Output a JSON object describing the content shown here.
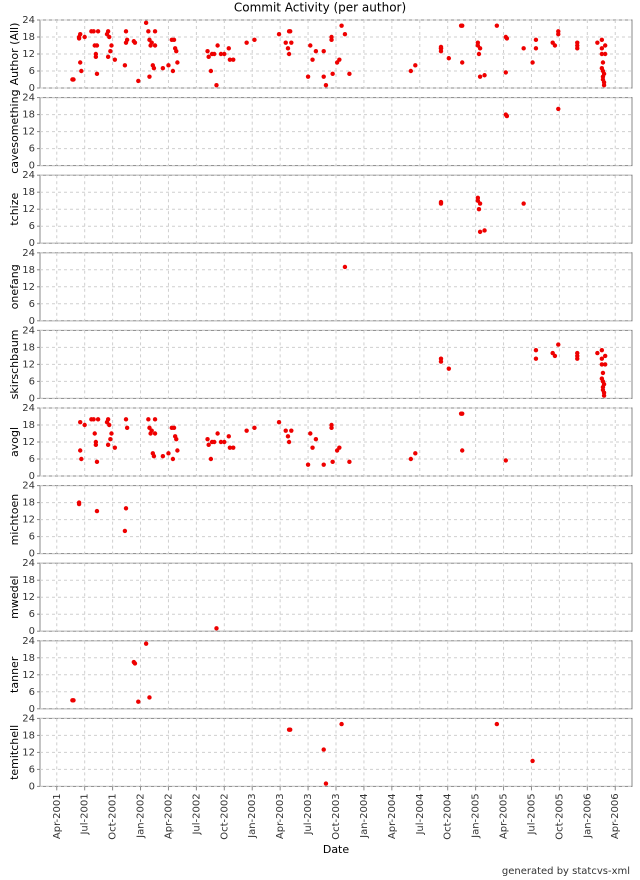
{
  "footer": "generated by statcvs-xml",
  "chart_data": [
    {
      "type": "scatter",
      "title": "Commit Activity (per author)",
      "ylabel": "Author (All)",
      "color": "#ee0000",
      "grid": true,
      "xlim": [
        2001.1,
        2006.4
      ],
      "ylim": [
        0,
        24
      ],
      "yticks": [
        0,
        6,
        12,
        18,
        24
      ],
      "x": [
        2005.27,
        2005.28,
        2005.74,
        2004.69,
        2004.69,
        2005.02,
        2005.02,
        2005.03,
        2005.04,
        2005.04,
        2005.08,
        2005.43,
        2003.83,
        2004.69,
        2004.69,
        2004.76,
        2005.54,
        2005.54,
        2005.69,
        2005.71,
        2005.74,
        2005.91,
        2005.91,
        2005.91,
        2006.09,
        2006.13,
        2006.13,
        2006.13,
        2006.14,
        2006.14,
        2006.14,
        2006.15,
        2006.15,
        2006.16,
        2006.16,
        2006.14,
        2006.15,
        2006.13,
        2001.46,
        2001.46,
        2001.47,
        2001.5,
        2001.56,
        2001.58,
        2001.59,
        2001.6,
        2001.6,
        2001.61,
        2001.62,
        2001.7,
        2001.71,
        2001.71,
        2001.72,
        2001.73,
        2001.74,
        2001.77,
        2001.87,
        2001.88,
        2002.07,
        2002.08,
        2002.09,
        2002.1,
        2002.11,
        2002.12,
        2002.13,
        2002.13,
        2002.2,
        2002.25,
        2002.28,
        2002.29,
        2002.3,
        2002.31,
        2002.32,
        2002.33,
        2002.6,
        2002.61,
        2002.63,
        2002.64,
        2002.66,
        2002.69,
        2002.72,
        2002.75,
        2002.79,
        2002.8,
        2002.83,
        2002.95,
        2003.02,
        2003.24,
        2003.3,
        2003.32,
        2003.33,
        2003.35,
        2003.5,
        2003.52,
        2003.54,
        2003.57,
        2003.64,
        2003.71,
        2003.71,
        2003.72,
        2003.76,
        2003.78,
        2003.87,
        2004.42,
        2004.46,
        2004.87,
        2004.88,
        2004.88,
        2005.27,
        2001.45,
        2001.45,
        2001.61,
        2001.87,
        2001.86,
        2002.68,
        2001.39,
        2001.4,
        2001.94,
        2001.95,
        2001.98,
        2002.05,
        2002.08,
        2003.33,
        2003.34,
        2003.64,
        2003.66,
        2003.8,
        2005.19,
        2005.51
      ],
      "values": [
        18,
        17.5,
        20,
        14,
        14.5,
        16,
        15,
        12,
        14,
        4,
        4.5,
        14,
        19,
        14,
        13,
        10.5,
        17,
        14,
        16,
        15,
        19,
        16,
        14,
        15,
        16,
        17,
        14,
        12,
        9,
        6,
        4,
        2,
        1,
        15,
        12,
        3,
        5,
        7,
        19,
        9,
        6,
        18,
        20,
        20,
        15,
        12,
        11,
        5,
        20,
        19,
        11,
        20,
        18,
        13,
        15,
        10,
        20,
        17,
        20,
        17,
        15,
        16,
        8,
        7,
        20,
        15,
        7,
        8,
        17,
        6,
        17,
        14,
        13,
        9,
        13,
        11,
        6,
        12,
        12,
        15,
        12,
        12,
        14,
        10,
        10,
        16,
        17,
        19,
        16,
        14,
        12,
        16,
        4,
        15,
        10,
        13,
        4,
        17,
        18,
        5,
        9,
        10,
        5,
        6,
        8,
        22,
        22,
        9,
        5.5,
        18,
        17.5,
        15,
        16,
        8,
        1,
        3,
        3,
        16.5,
        16,
        2.5,
        23,
        4,
        20,
        20,
        13,
        1,
        22,
        22,
        9
      ]
    },
    {
      "type": "scatter",
      "ylabel": "cavesomething",
      "color": "#ee0000",
      "grid": true,
      "xlim": [
        2001.1,
        2006.4
      ],
      "ylim": [
        0,
        24
      ],
      "yticks": [
        0,
        6,
        12,
        18,
        24
      ],
      "x": [
        2005.27,
        2005.28,
        2005.74
      ],
      "values": [
        18,
        17.5,
        20
      ]
    },
    {
      "type": "scatter",
      "ylabel": "tchize",
      "color": "#ee0000",
      "grid": true,
      "xlim": [
        2001.1,
        2006.4
      ],
      "ylim": [
        0,
        24
      ],
      "yticks": [
        0,
        6,
        12,
        18,
        24
      ],
      "x": [
        2004.69,
        2004.69,
        2005.02,
        2005.02,
        2005.03,
        2005.04,
        2005.04,
        2005.08,
        2005.43
      ],
      "values": [
        14,
        14.5,
        16,
        15,
        12,
        14,
        4,
        4.5,
        14
      ]
    },
    {
      "type": "scatter",
      "ylabel": "onefang",
      "color": "#ee0000",
      "grid": true,
      "xlim": [
        2001.1,
        2006.4
      ],
      "ylim": [
        0,
        24
      ],
      "yticks": [
        0,
        6,
        12,
        18,
        24
      ],
      "x": [
        2003.83
      ],
      "values": [
        19
      ]
    },
    {
      "type": "scatter",
      "ylabel": "skirschbaum",
      "color": "#ee0000",
      "grid": true,
      "xlim": [
        2001.1,
        2006.4
      ],
      "ylim": [
        0,
        24
      ],
      "yticks": [
        0,
        6,
        12,
        18,
        24
      ],
      "x": [
        2004.69,
        2004.69,
        2004.76,
        2005.54,
        2005.54,
        2005.69,
        2005.71,
        2005.74,
        2005.91,
        2005.91,
        2005.91,
        2006.09,
        2006.13,
        2006.13,
        2006.13,
        2006.14,
        2006.14,
        2006.14,
        2006.15,
        2006.15,
        2006.16,
        2006.16,
        2006.14,
        2006.15,
        2006.13
      ],
      "values": [
        14,
        13,
        10.5,
        17,
        14,
        16,
        15,
        19,
        16,
        14,
        15,
        16,
        17,
        14,
        12,
        9,
        6,
        4,
        2,
        1,
        15,
        12,
        3,
        5,
        7
      ]
    },
    {
      "type": "scatter",
      "ylabel": "avogl",
      "color": "#ee0000",
      "grid": true,
      "xlim": [
        2001.1,
        2006.4
      ],
      "ylim": [
        0,
        24
      ],
      "yticks": [
        0,
        6,
        12,
        18,
        24
      ],
      "x": [
        2001.46,
        2001.46,
        2001.47,
        2001.5,
        2001.56,
        2001.58,
        2001.59,
        2001.6,
        2001.6,
        2001.61,
        2001.62,
        2001.7,
        2001.71,
        2001.71,
        2001.72,
        2001.73,
        2001.74,
        2001.77,
        2001.87,
        2001.88,
        2002.07,
        2002.08,
        2002.09,
        2002.1,
        2002.11,
        2002.12,
        2002.13,
        2002.13,
        2002.2,
        2002.25,
        2002.28,
        2002.29,
        2002.3,
        2002.31,
        2002.32,
        2002.33,
        2002.6,
        2002.61,
        2002.63,
        2002.64,
        2002.66,
        2002.69,
        2002.72,
        2002.75,
        2002.79,
        2002.8,
        2002.83,
        2002.95,
        2003.02,
        2003.24,
        2003.3,
        2003.32,
        2003.33,
        2003.35,
        2003.5,
        2003.52,
        2003.54,
        2003.57,
        2003.64,
        2003.71,
        2003.71,
        2003.72,
        2003.76,
        2003.78,
        2003.87,
        2004.42,
        2004.46,
        2004.87,
        2004.88,
        2004.88,
        2005.27
      ],
      "values": [
        19,
        9,
        6,
        18,
        20,
        20,
        15,
        12,
        11,
        5,
        20,
        19,
        11,
        20,
        18,
        13,
        15,
        10,
        20,
        17,
        20,
        17,
        15,
        16,
        8,
        7,
        20,
        15,
        7,
        8,
        17,
        6,
        17,
        14,
        13,
        9,
        13,
        11,
        6,
        12,
        12,
        15,
        12,
        12,
        14,
        10,
        10,
        16,
        17,
        19,
        16,
        14,
        12,
        16,
        4,
        15,
        10,
        13,
        4,
        17,
        18,
        5,
        9,
        10,
        5,
        6,
        8,
        22,
        22,
        9,
        5.5
      ]
    },
    {
      "type": "scatter",
      "ylabel": "michtoen",
      "color": "#ee0000",
      "grid": true,
      "xlim": [
        2001.1,
        2006.4
      ],
      "ylim": [
        0,
        24
      ],
      "yticks": [
        0,
        6,
        12,
        18,
        24
      ],
      "x": [
        2001.45,
        2001.45,
        2001.61,
        2001.87,
        2001.86
      ],
      "values": [
        18,
        17.5,
        15,
        16,
        8
      ]
    },
    {
      "type": "scatter",
      "ylabel": "mwedel",
      "color": "#ee0000",
      "grid": true,
      "xlim": [
        2001.1,
        2006.4
      ],
      "ylim": [
        0,
        24
      ],
      "yticks": [
        0,
        6,
        12,
        18,
        24
      ],
      "x": [
        2002.68
      ],
      "values": [
        1
      ]
    },
    {
      "type": "scatter",
      "ylabel": "tanner",
      "color": "#ee0000",
      "grid": true,
      "xlim": [
        2001.1,
        2006.4
      ],
      "ylim": [
        0,
        24
      ],
      "yticks": [
        0,
        6,
        12,
        18,
        24
      ],
      "x": [
        2001.39,
        2001.4,
        2001.94,
        2001.95,
        2001.98,
        2002.05,
        2002.08
      ],
      "values": [
        3,
        3,
        16.5,
        16,
        2.5,
        23,
        4
      ]
    },
    {
      "type": "scatter",
      "ylabel": "temitchell",
      "xlabel": "Date",
      "color": "#ee0000",
      "grid": true,
      "xlim": [
        2001.1,
        2006.4
      ],
      "ylim": [
        0,
        24
      ],
      "yticks": [
        0,
        6,
        12,
        18,
        24
      ],
      "x": [
        2003.33,
        2003.34,
        2003.64,
        2003.66,
        2003.8,
        2005.19,
        2005.51
      ],
      "values": [
        20,
        20,
        13,
        1,
        22,
        22,
        9
      ],
      "xticks": [
        {
          "value": 2001.25,
          "label": "Apr-2001"
        },
        {
          "value": 2001.5,
          "label": "Jul-2001"
        },
        {
          "value": 2001.75,
          "label": "Oct-2001"
        },
        {
          "value": 2002.0,
          "label": "Jan-2002"
        },
        {
          "value": 2002.25,
          "label": "Apr-2002"
        },
        {
          "value": 2002.5,
          "label": "Jul-2002"
        },
        {
          "value": 2002.75,
          "label": "Oct-2002"
        },
        {
          "value": 2003.0,
          "label": "Jan-2003"
        },
        {
          "value": 2003.25,
          "label": "Apr-2003"
        },
        {
          "value": 2003.5,
          "label": "Jul-2003"
        },
        {
          "value": 2003.75,
          "label": "Oct-2003"
        },
        {
          "value": 2004.0,
          "label": "Jan-2004"
        },
        {
          "value": 2004.25,
          "label": "Apr-2004"
        },
        {
          "value": 2004.5,
          "label": "Jul-2004"
        },
        {
          "value": 2004.75,
          "label": "Oct-2004"
        },
        {
          "value": 2005.0,
          "label": "Jan-2005"
        },
        {
          "value": 2005.25,
          "label": "Apr-2005"
        },
        {
          "value": 2005.5,
          "label": "Jul-2005"
        },
        {
          "value": 2005.75,
          "label": "Oct-2005"
        },
        {
          "value": 2006.0,
          "label": "Jan-2006"
        },
        {
          "value": 2006.25,
          "label": "Apr-2006"
        }
      ]
    }
  ]
}
